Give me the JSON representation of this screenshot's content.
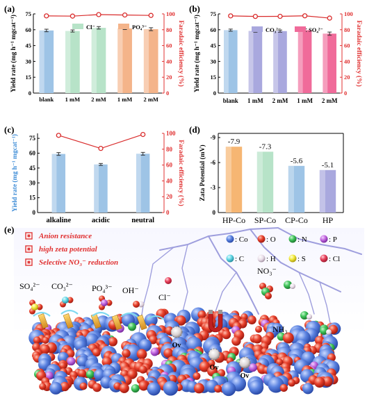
{
  "panels": {
    "a": {
      "label": "(a)"
    },
    "b": {
      "label": "(b)"
    },
    "c": {
      "label": "(c)"
    },
    "d": {
      "label": "(d)"
    },
    "e": {
      "label": "(e)"
    }
  },
  "colors": {
    "axis_right": "#e03030",
    "fe_line": "#d92b2b",
    "bar_blue": "#9ec4e6",
    "bar_green": "#b7e3c8",
    "bar_orange": "#f4b48a",
    "bar_purple": "#a9a8de",
    "bar_pink": "#f06b9a",
    "bar_d_orange": "#f6b673"
  },
  "chart_data": [
    {
      "panel": "a",
      "type": "bar",
      "categories": [
        "blank",
        "1 mM",
        "2 mM",
        "1 mM",
        "2 mM"
      ],
      "series": [
        {
          "values": [
            59.3,
            58.8,
            61.8,
            61.2,
            60.5
          ],
          "errors": [
            1.2,
            1.0,
            1.2,
            1.0,
            1.4
          ]
        },
        {
          "values": [
            97.5,
            97.2,
            99.1,
            98.6,
            98.1
          ],
          "axis": "right"
        }
      ],
      "legend": [
        "Cl⁻",
        "PO₄³⁻"
      ],
      "ylabel": "Yield rate (mg h⁻¹ mgcat⁻¹)",
      "y2label": "Faradaic efficiency (%)",
      "ylim": [
        0,
        75
      ],
      "yticks": [
        0,
        15,
        30,
        45,
        60,
        75
      ],
      "y2lim": [
        0,
        100
      ],
      "y2ticks": [
        0,
        20,
        40,
        60,
        80,
        100
      ]
    },
    {
      "panel": "b",
      "type": "bar",
      "categories": [
        "blank",
        "1 mM",
        "2 mM",
        "1 mM",
        "2 mM"
      ],
      "series": [
        {
          "values": [
            59.6,
            58.9,
            58.7,
            59.6,
            56.3
          ],
          "errors": [
            1.0,
            1.2,
            1.0,
            1.2,
            1.5
          ]
        },
        {
          "values": [
            97.5,
            96.8,
            96.9,
            97.6,
            94.7
          ],
          "axis": "right"
        }
      ],
      "legend": [
        "CO₃²⁻",
        "SO₄²⁻"
      ],
      "ylabel": "Yield rate (mg h⁻¹ mgcat⁻¹)",
      "y2label": "Faradaic efficiency (%)",
      "ylim": [
        0,
        75
      ],
      "yticks": [
        0,
        15,
        30,
        45,
        60,
        75
      ],
      "y2lim": [
        0,
        100
      ],
      "y2ticks": [
        0,
        20,
        40,
        60,
        80,
        100
      ]
    },
    {
      "panel": "c",
      "type": "bar",
      "categories": [
        "alkaline",
        "acidic",
        "neutral"
      ],
      "series": [
        {
          "values": [
            59.2,
            48.6,
            59.4
          ],
          "errors": [
            1.4,
            1.0,
            1.4
          ]
        },
        {
          "values": [
            97.5,
            81.0,
            98.6
          ],
          "axis": "right"
        }
      ],
      "ylabel": "Yield rate (mg h⁻¹ mgcat⁻¹)",
      "y2label": "Faradaic efficiency (%)",
      "ylim": [
        0,
        80
      ],
      "yticks": [
        0,
        15,
        30,
        45,
        60,
        75
      ],
      "y2lim": [
        0,
        100
      ],
      "y2ticks": [
        0,
        20,
        40,
        60,
        80,
        100
      ]
    },
    {
      "panel": "d",
      "type": "bar",
      "categories": [
        "HP-Co",
        "SP-Co",
        "CP-Co",
        "HP"
      ],
      "values": [
        -7.9,
        -7.3,
        -5.6,
        -5.1
      ],
      "data_labels": [
        "-7.9",
        "-7.3",
        "-5.6",
        "-5.1"
      ],
      "ylabel": "Zata Potential (mV)",
      "ylim": [
        0,
        -9.5
      ],
      "yticks": [
        0,
        -3,
        -6,
        -9
      ],
      "ytick_labels": [
        "0",
        "-3",
        "-6",
        "-9"
      ]
    }
  ],
  "scheme": {
    "bullets": [
      "Anion resistance",
      "high zeta potential",
      "Selective NO₃⁻ reduction"
    ],
    "legend_top": [
      {
        "text": ": Co",
        "color": "#4a78d8"
      },
      {
        "text": ": O",
        "color": "#e8412c"
      },
      {
        "text": ": N",
        "color": "#3fc45a"
      },
      {
        "text": ": P",
        "color": "#c46ae0"
      }
    ],
    "legend_bottom": [
      {
        "text": ": C",
        "color": "#63d7e6"
      },
      {
        "text": ": H",
        "color": "#e7dbe7"
      },
      {
        "text": ": S",
        "color": "#f2ea3c"
      },
      {
        "text": ": Cl",
        "color": "#e8415c"
      }
    ],
    "anions": [
      "SO₄²⁻",
      "CO₃²⁻",
      "PO₄³⁻",
      "OH⁻",
      "Cl⁻"
    ],
    "nitrate": "NO₃⁻",
    "ammonia": "NH₃",
    "vacancy": "Ov"
  }
}
